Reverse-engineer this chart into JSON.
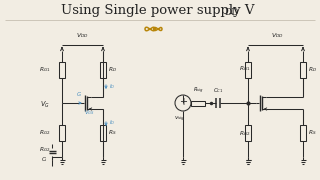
{
  "title": "Using Single power supply V",
  "title_sub": "DD",
  "bg_color": "#f2ede3",
  "text_color": "#222222",
  "title_fontsize": 9.5,
  "symbol_color": "#b8860b",
  "circuit_color": "#2a2a2a",
  "blue_color": "#4a8fc0",
  "label_fontsize": 4.2,
  "vdd_fontsize": 4.5
}
